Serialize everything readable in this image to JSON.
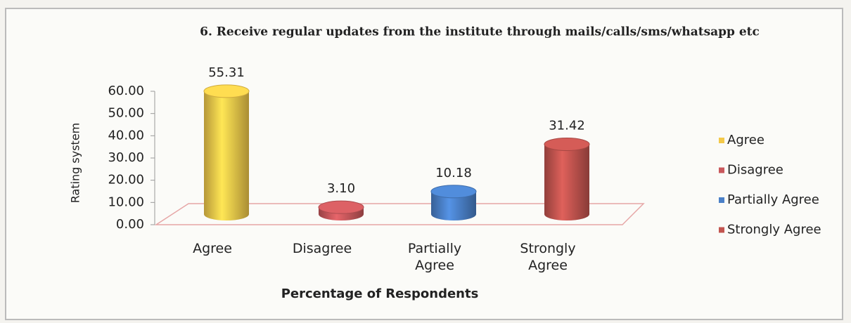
{
  "chart_data": {
    "type": "bar3d",
    "title": "6. Receive regular updates from the institute through mails/calls/sms/whatsapp etc",
    "y_label": "Rating system",
    "x_label": "Percentage of Respondents",
    "categories": [
      "Agree",
      "Disagree",
      "Partially Agree",
      "Strongly Agree"
    ],
    "values": [
      55.31,
      3.1,
      10.18,
      31.42
    ],
    "value_labels": [
      "55.31",
      "3.10",
      "10.18",
      "31.42"
    ],
    "colors": [
      "#f3c94a",
      "#c9585c",
      "#4a80c8",
      "#c2544f"
    ],
    "ylim": [
      0,
      60
    ],
    "yticks": [
      {
        "value": 0,
        "label": "0.00"
      },
      {
        "value": 10,
        "label": "10.00"
      },
      {
        "value": 20,
        "label": "20.00"
      },
      {
        "value": 30,
        "label": "30.00"
      },
      {
        "value": 40,
        "label": "40.00"
      },
      {
        "value": 50,
        "label": "50.00"
      },
      {
        "value": 60,
        "label": "60.00"
      }
    ],
    "legend": "right"
  }
}
